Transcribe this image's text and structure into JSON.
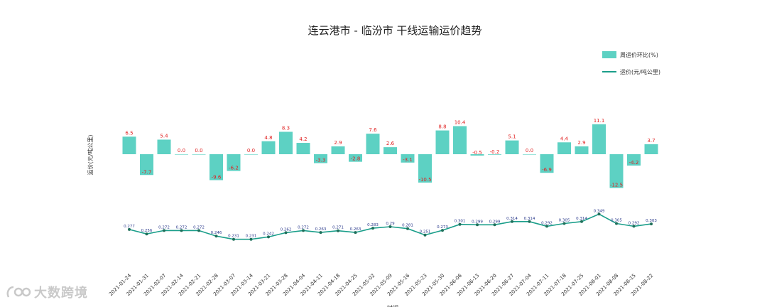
{
  "chart_data": {
    "type": "bar+line",
    "title": "连云港市 - 临汾市 干线运输运价趋势",
    "xlabel": "时间",
    "ylabel": "运价(元/吨公里)",
    "categories": [
      "2021-01-24",
      "2021-01-31",
      "2021-02-07",
      "2021-02-14",
      "2021-02-21",
      "2021-02-28",
      "2021-03-07",
      "2021-03-14",
      "2021-03-21",
      "2021-03-28",
      "2021-04-04",
      "2021-04-11",
      "2021-04-18",
      "2021-04-25",
      "2021-05-02",
      "2021-05-09",
      "2021-05-16",
      "2021-05-23",
      "2021-05-30",
      "2021-06-06",
      "2021-06-13",
      "2021-06-20",
      "2021-06-27",
      "2021-07-04",
      "2021-07-11",
      "2021-07-18",
      "2021-07-25",
      "2021-08-01",
      "2021-08-08",
      "2021-08-15",
      "2021-08-22"
    ],
    "series": [
      {
        "name": "周运价环比(%)",
        "type": "bar",
        "color": "#5dd1c3",
        "values": [
          6.5,
          -7.7,
          5.4,
          0.0,
          0.0,
          -9.6,
          -6.2,
          0.0,
          4.8,
          8.3,
          4.2,
          -3.3,
          2.9,
          -2.8,
          7.6,
          2.6,
          -3.1,
          -10.5,
          8.8,
          10.4,
          -0.5,
          -0.2,
          5.1,
          0.0,
          -6.9,
          4.4,
          2.9,
          11.1,
          -12.5,
          -4.2,
          3.7
        ],
        "labels": [
          "6.5",
          "-7.7",
          "5.4",
          "0.0",
          "0.0",
          "-9.6",
          "-6.2",
          "0.0",
          "4.8",
          "8.3",
          "4.2",
          "-3.3",
          "2.9",
          "-2.8",
          "7.6",
          "2.6",
          "-3.1",
          "-10.5",
          "8.8",
          "10.4",
          "-0.5",
          "-0.2",
          "5.1",
          "0.0",
          "-6.9",
          "4.4",
          "2.9",
          "11.1",
          "-12.5",
          "-4.2",
          "3.7"
        ]
      },
      {
        "name": "运价(元/吨公里)",
        "type": "line",
        "color": "#1a9e8a",
        "values": [
          0.277,
          0.256,
          0.272,
          0.272,
          0.272,
          0.246,
          0.231,
          0.231,
          0.242,
          0.262,
          0.272,
          0.263,
          0.271,
          0.263,
          0.283,
          0.29,
          0.281,
          0.251,
          0.273,
          0.301,
          0.299,
          0.299,
          0.314,
          0.314,
          0.292,
          0.305,
          0.314,
          0.349,
          0.305,
          0.292,
          0.303
        ],
        "labels": [
          "0.277",
          "0.256",
          "0.272",
          "0.272",
          "0.272",
          "0.246",
          "0.231",
          "0.231",
          "0.242",
          "0.262",
          "0.272",
          "0.263",
          "0.271",
          "0.263",
          "0.283",
          "0.29",
          "0.281",
          "0.251",
          "0.273",
          "0.301",
          "0.299",
          "0.299",
          "0.314",
          "0.314",
          "0.292",
          "0.305",
          "0.314",
          "0.349",
          "0.305",
          "0.292",
          "0.303"
        ]
      }
    ],
    "legend": {
      "placement": "top-right"
    },
    "grid": false
  },
  "watermark": {
    "text": "大数跨境",
    "icon": "logo-icon"
  }
}
